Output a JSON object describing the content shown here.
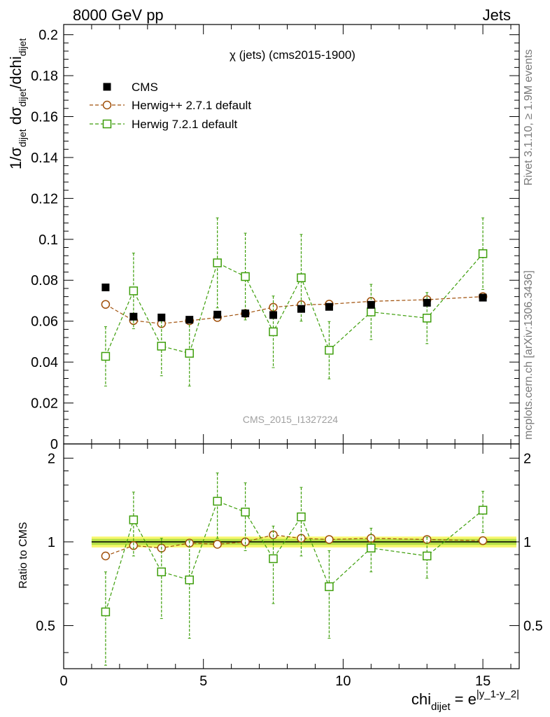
{
  "header": {
    "left": "8000 GeV pp",
    "right": "Jets"
  },
  "side_labels": {
    "rivet": "Rivet 3.1.10, ≥ 1.9M events",
    "mcplots": "mcplots.cern.ch [arXiv:1306.3436]"
  },
  "chart_data": [
    {
      "type": "scatter",
      "panel": "main",
      "title": "χ (jets) (cms2015-1900)",
      "watermark": "CMS_2015_I1327224",
      "ylabel": "1/σ_dijet dσ_dijet/dchi_dijet",
      "ylim": [
        0,
        0.205
      ],
      "xlim": [
        0,
        16.3
      ],
      "yticks": [
        0,
        0.02,
        0.04,
        0.06,
        0.08,
        0.1,
        0.12,
        0.14,
        0.16,
        0.18,
        0.2
      ],
      "ytick_labels": [
        "0",
        "0.02",
        "0.04",
        "0.06",
        "0.08",
        "0.1",
        "0.12",
        "0.14",
        "0.16",
        "0.18",
        "0.2"
      ],
      "legend_position": "top-left",
      "series": [
        {
          "name": "CMS",
          "color": "#000000",
          "marker": "filled-square",
          "x": [
            1.5,
            2.5,
            3.5,
            4.5,
            5.5,
            6.5,
            7.5,
            8.5,
            9.5,
            11,
            13,
            15
          ],
          "y": [
            0.0765,
            0.0622,
            0.0618,
            0.0607,
            0.0632,
            0.0638,
            0.063,
            0.066,
            0.067,
            0.068,
            0.069,
            0.0715
          ]
        },
        {
          "name": "Herwig++ 2.7.1 default",
          "color": "#a0500a",
          "marker": "open-circle",
          "line": "dashed",
          "x": [
            1.5,
            2.5,
            3.5,
            4.5,
            5.5,
            6.5,
            7.5,
            8.5,
            9.5,
            11,
            13,
            15
          ],
          "y": [
            0.0682,
            0.0603,
            0.0588,
            0.0602,
            0.0618,
            0.0638,
            0.0668,
            0.068,
            0.0683,
            0.0697,
            0.0705,
            0.072
          ],
          "yerr": [
            0.0008,
            0.0008,
            0.0008,
            0.0008,
            0.0008,
            0.0008,
            0.0008,
            0.0008,
            0.0008,
            0.0008,
            0.0008,
            0.0008
          ]
        },
        {
          "name": "Herwig 7.2.1 default",
          "color": "#3d9e0a",
          "marker": "open-square",
          "line": "dashed",
          "x": [
            1.5,
            2.5,
            3.5,
            4.5,
            5.5,
            6.5,
            7.5,
            8.5,
            9.5,
            11,
            13,
            15
          ],
          "y": [
            0.0428,
            0.0748,
            0.0478,
            0.0443,
            0.0885,
            0.0818,
            0.0548,
            0.0812,
            0.0458,
            0.0645,
            0.0615,
            0.093
          ],
          "yerr": [
            0.0145,
            0.0185,
            0.0145,
            0.016,
            0.022,
            0.0212,
            0.0175,
            0.0212,
            0.014,
            0.0135,
            0.0125,
            0.0175
          ]
        }
      ]
    },
    {
      "type": "scatter",
      "panel": "ratio",
      "ylabel": "Ratio to CMS",
      "xlabel_main": "chi",
      "xlabel_sub": "dijet",
      "xlabel_eq": " = e",
      "xlabel_sup": "|y_1-y_2|",
      "ylim": [
        0.35,
        2.25
      ],
      "xlim": [
        0,
        16.3
      ],
      "xticks": [
        0,
        5,
        10,
        15
      ],
      "xtick_labels": [
        "0",
        "5",
        "10",
        "15"
      ],
      "yticks": [
        0.5,
        1,
        2
      ],
      "ytick_labels": [
        "0.5",
        "1",
        "2"
      ],
      "band": {
        "color": "#f7f76e",
        "inner_color": "#b4e046",
        "y_low": 0.975,
        "y_high": 1.025
      },
      "series": [
        {
          "name": "Herwig++ 2.7.1 default",
          "color": "#a0500a",
          "x": [
            1.5,
            2.5,
            3.5,
            4.5,
            5.5,
            6.5,
            7.5,
            8.5,
            9.5,
            11,
            13,
            15
          ],
          "y": [
            0.89,
            0.97,
            0.95,
            0.99,
            0.98,
            1.0,
            1.06,
            1.03,
            1.02,
            1.03,
            1.02,
            1.01
          ],
          "yerr": [
            0.01,
            0.01,
            0.01,
            0.01,
            0.01,
            0.01,
            0.01,
            0.01,
            0.01,
            0.01,
            0.01,
            0.01
          ]
        },
        {
          "name": "Herwig 7.2.1 default",
          "color": "#3d9e0a",
          "x": [
            1.5,
            2.5,
            3.5,
            4.5,
            5.5,
            6.5,
            7.5,
            8.5,
            9.5,
            11,
            13,
            15
          ],
          "y": [
            0.56,
            1.2,
            0.78,
            0.73,
            1.4,
            1.28,
            0.87,
            1.23,
            0.69,
            0.95,
            0.89,
            1.3
          ],
          "yerr": [
            0.22,
            0.31,
            0.25,
            0.28,
            0.37,
            0.35,
            0.27,
            0.34,
            0.24,
            0.17,
            0.15,
            0.22
          ]
        }
      ]
    }
  ]
}
